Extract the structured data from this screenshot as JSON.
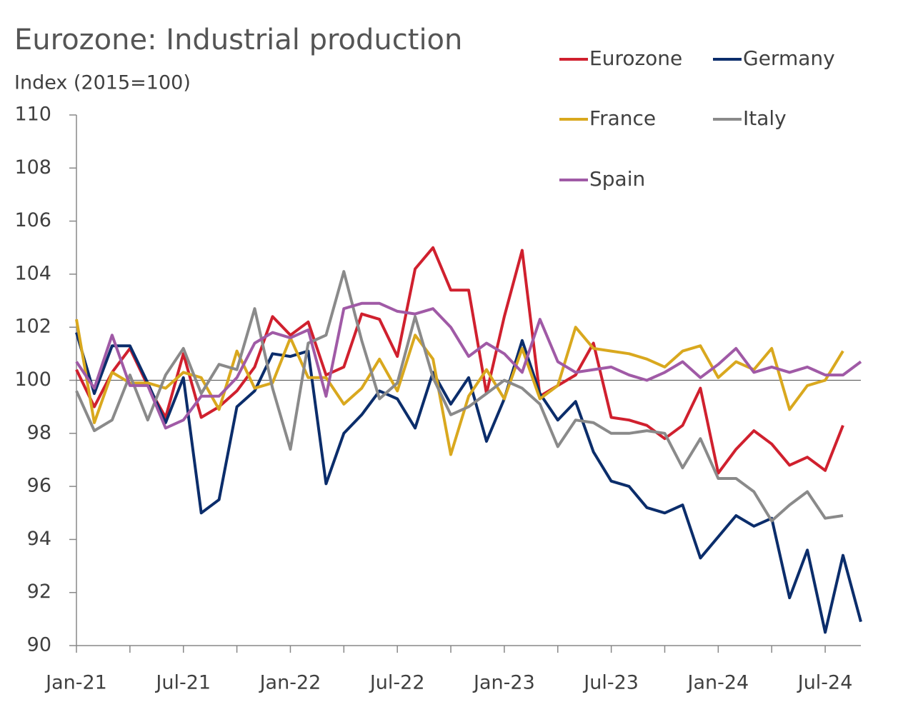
{
  "chart_data": {
    "type": "line",
    "title": "Eurozone: Industrial production",
    "subtitle": "Index (2015=100)",
    "categories": [
      "Jan-21",
      null,
      null,
      null,
      null,
      null,
      "Jul-21",
      null,
      null,
      null,
      null,
      null,
      "Jan-22",
      null,
      null,
      null,
      null,
      null,
      "Jul-22",
      null,
      null,
      null,
      null,
      null,
      "Jan-23",
      null,
      null,
      null,
      null,
      null,
      "Jul-23",
      null,
      null,
      null,
      null,
      null,
      "Jan-24",
      null,
      null,
      null,
      null,
      null,
      "Jul-24",
      null,
      null
    ],
    "series": [
      {
        "name": "Eurozone",
        "color": "#d0202e",
        "values": [
          100.4,
          99.0,
          100.3,
          101.2,
          99.8,
          98.6,
          101.0,
          98.6,
          99.0,
          99.6,
          100.5,
          102.4,
          101.7,
          102.2,
          100.2,
          100.5,
          102.5,
          102.3,
          100.9,
          104.2,
          105.0,
          103.4,
          103.4,
          99.5,
          102.4,
          104.9,
          99.4,
          99.8,
          100.2,
          101.4,
          98.6,
          98.5,
          98.3,
          97.8,
          98.3,
          99.7,
          96.5,
          97.4,
          98.1,
          97.6,
          96.8,
          97.1,
          96.6,
          98.3,
          null
        ]
      },
      {
        "name": "Germany",
        "color": "#0b2d6b",
        "values": [
          101.8,
          99.5,
          101.3,
          101.3,
          99.9,
          98.4,
          100.1,
          95.0,
          95.5,
          99.0,
          99.6,
          101.0,
          100.9,
          101.1,
          96.1,
          98.0,
          98.7,
          99.6,
          99.3,
          98.2,
          100.3,
          99.1,
          100.1,
          97.7,
          99.3,
          101.5,
          99.5,
          98.5,
          99.2,
          97.3,
          96.2,
          96.0,
          95.2,
          95.0,
          95.3,
          93.3,
          94.1,
          94.9,
          94.5,
          94.8,
          91.8,
          93.6,
          90.5,
          93.4,
          90.9
        ]
      },
      {
        "name": "France",
        "color": "#d9a81e",
        "values": [
          102.3,
          98.4,
          100.3,
          99.9,
          99.9,
          99.7,
          100.3,
          100.1,
          98.9,
          101.1,
          99.7,
          99.9,
          101.6,
          100.1,
          100.1,
          99.1,
          99.7,
          100.8,
          99.6,
          101.7,
          100.8,
          97.2,
          99.4,
          100.4,
          99.3,
          101.2,
          99.3,
          99.8,
          102.0,
          101.2,
          101.1,
          101.0,
          100.8,
          100.5,
          101.1,
          101.3,
          100.1,
          100.7,
          100.4,
          101.2,
          98.9,
          99.8,
          100.0,
          101.1,
          null
        ]
      },
      {
        "name": "Italy",
        "color": "#8a8a8a",
        "values": [
          99.6,
          98.1,
          98.5,
          100.2,
          98.5,
          100.2,
          101.2,
          99.5,
          100.6,
          100.4,
          102.7,
          99.7,
          97.4,
          101.4,
          101.7,
          104.1,
          101.5,
          99.3,
          99.9,
          102.4,
          100.1,
          98.7,
          99.0,
          99.5,
          100.0,
          99.7,
          99.1,
          97.5,
          98.5,
          98.4,
          98.0,
          98.0,
          98.1,
          98.0,
          96.7,
          97.8,
          96.3,
          96.3,
          95.8,
          94.7,
          95.3,
          95.8,
          94.8,
          94.9,
          null
        ]
      },
      {
        "name": "Spain",
        "color": "#a05aa6",
        "values": [
          100.7,
          99.7,
          101.7,
          99.8,
          99.8,
          98.2,
          98.5,
          99.4,
          99.4,
          100.1,
          101.4,
          101.8,
          101.6,
          101.9,
          99.4,
          102.7,
          102.9,
          102.9,
          102.6,
          102.5,
          102.7,
          102.0,
          100.9,
          101.4,
          101.0,
          100.3,
          102.3,
          100.7,
          100.3,
          100.4,
          100.5,
          100.2,
          100.0,
          100.3,
          100.7,
          100.1,
          100.6,
          101.2,
          100.3,
          100.5,
          100.3,
          100.5,
          100.2,
          100.2,
          100.7
        ]
      }
    ],
    "ylim": [
      90,
      110
    ],
    "yticks": [
      90,
      92,
      94,
      96,
      98,
      100,
      102,
      104,
      106,
      108,
      110
    ],
    "reference_line": 100,
    "legend": "top-right",
    "grid": false
  }
}
